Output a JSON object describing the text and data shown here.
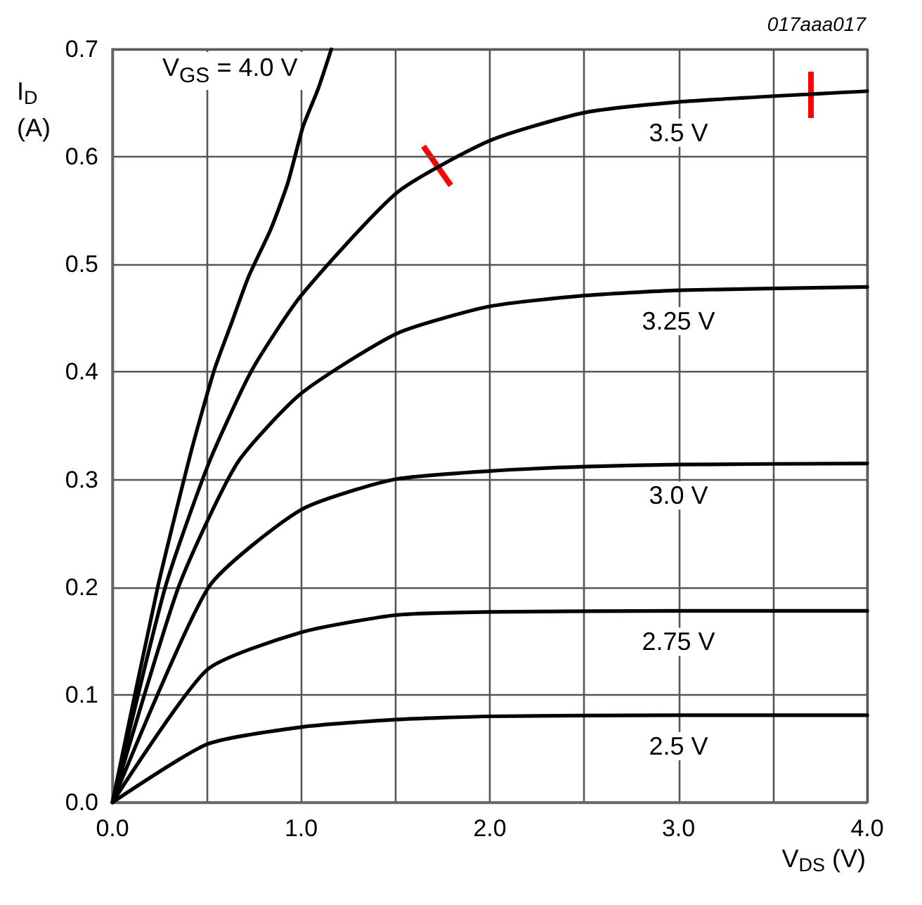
{
  "chart_data": {
    "type": "line",
    "xlabel": "V$_{DS}$ (V)",
    "ylabel": "I$_{D}$ (A)",
    "xlim": [
      0,
      4
    ],
    "ylim": [
      0,
      0.7
    ],
    "xticks": [
      {
        "value": 0,
        "label": "0.0"
      },
      {
        "value": 0.5,
        "label": null
      },
      {
        "value": 1,
        "label": "1.0"
      },
      {
        "value": 1.5,
        "label": null
      },
      {
        "value": 2,
        "label": "2.0"
      },
      {
        "value": 2.5,
        "label": null
      },
      {
        "value": 3,
        "label": "3.0"
      },
      {
        "value": 3.5,
        "label": null
      },
      {
        "value": 4,
        "label": "4.0"
      }
    ],
    "yticks": [
      {
        "value": 0,
        "label": "0.0"
      },
      {
        "value": 0.1,
        "label": "0.1"
      },
      {
        "value": 0.2,
        "label": "0.2"
      },
      {
        "value": 0.3,
        "label": "0.3"
      },
      {
        "value": 0.4,
        "label": "0.4"
      },
      {
        "value": 0.5,
        "label": "0.5"
      },
      {
        "value": 0.6,
        "label": "0.6"
      },
      {
        "value": 0.7,
        "label": "0.7"
      }
    ],
    "grid": true,
    "marker": "none",
    "line_style": "solid",
    "series": [
      {
        "name": "V$_{GS}$ = 4.0 V",
        "color": "#000000",
        "x": [
          0,
          0.24,
          0.42,
          0.54,
          0.63,
          0.72,
          0.84,
          0.93,
          1.01,
          1.09,
          1.16
        ],
        "values": [
          0,
          0.2,
          0.328,
          0.402,
          0.445,
          0.488,
          0.533,
          0.576,
          0.628,
          0.663,
          0.7
        ]
      },
      {
        "name": "3.5 V",
        "color": "#000000",
        "x": [
          0,
          0.28,
          0.51,
          0.74,
          1.0,
          1.51,
          2.0,
          2.5,
          3.0,
          4.0
        ],
        "values": [
          0,
          0.2,
          0.315,
          0.402,
          0.471,
          0.567,
          0.615,
          0.641,
          0.651,
          0.661
        ]
      },
      {
        "name": "3.25 V",
        "color": "#000000",
        "x": [
          0,
          0.35,
          0.66,
          1.0,
          1.51,
          2.0,
          2.5,
          3.0,
          4.0
        ],
        "values": [
          0,
          0.2,
          0.315,
          0.38,
          0.436,
          0.461,
          0.471,
          0.476,
          0.479
        ]
      },
      {
        "name": "3.0 V",
        "color": "#000000",
        "x": [
          0,
          0.51,
          1.0,
          1.49,
          2.0,
          2.5,
          3.0,
          4.0
        ],
        "values": [
          0,
          0.2,
          0.272,
          0.3,
          0.308,
          0.312,
          0.314,
          0.315
        ]
      },
      {
        "name": "2.75 V",
        "color": "#000000",
        "x": [
          0,
          0.5,
          1.0,
          1.5,
          2.0,
          3.0,
          4.0
        ],
        "values": [
          0,
          0.123,
          0.158,
          0.174,
          0.177,
          0.178,
          0.178
        ]
      },
      {
        "name": "2.5 V",
        "color": "#000000",
        "x": [
          0,
          0.5,
          1.0,
          1.5,
          2.0,
          3.0,
          4.0
        ],
        "values": [
          0,
          0.054,
          0.07,
          0.077,
          0.08,
          0.081,
          0.081
        ]
      }
    ],
    "annotations": [
      "017aaa017"
    ]
  }
}
